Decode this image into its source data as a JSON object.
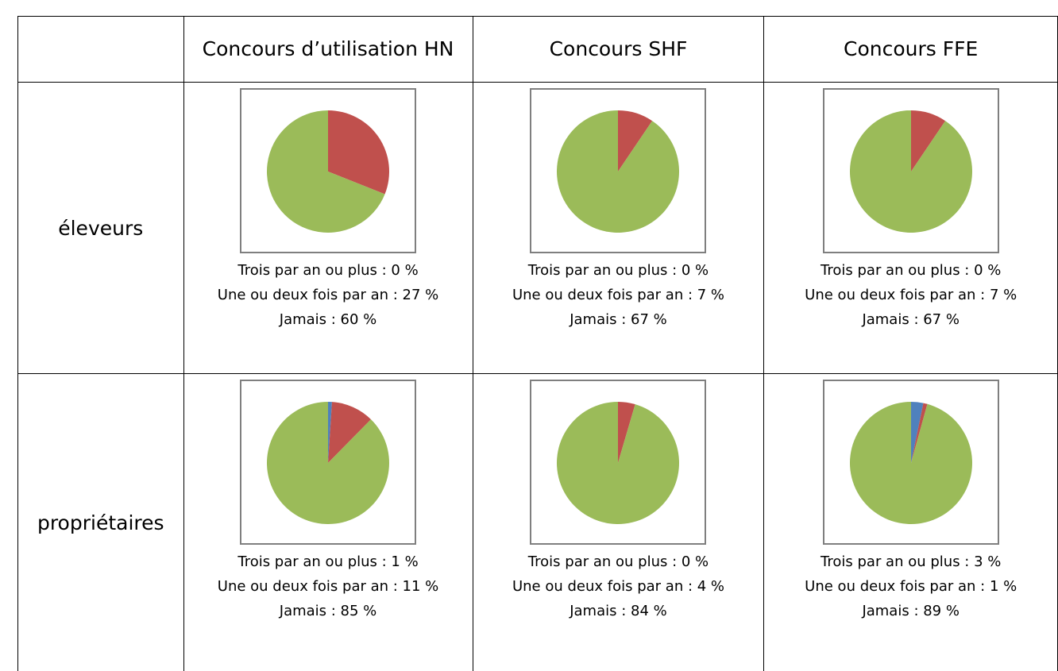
{
  "table": {
    "colors": [
      "#4f81bd",
      "#c0504d",
      "#9bbb59"
    ],
    "header": [
      "Concours d’utilisation HN",
      "Concours SHF",
      "Concours FFE"
    ],
    "rows": [
      {
        "label": "éleveurs",
        "cells": [
          {
            "type": "pie",
            "values": [
              0,
              27,
              60
            ],
            "value_labels": [
              "Trois par an ou plus : 0 %",
              "Une ou deux fois par an : 27 %",
              "Jamais : 60 %"
            ]
          },
          {
            "type": "pie",
            "values": [
              0,
              7,
              67
            ],
            "value_labels": [
              "Trois par an ou plus : 0 %",
              "Une ou deux fois par an : 7 %",
              "Jamais : 67 %"
            ]
          },
          {
            "type": "pie",
            "values": [
              0,
              7,
              67
            ],
            "value_labels": [
              "Trois par an ou plus : 0 %",
              "Une ou deux fois par an : 7 %",
              "Jamais : 67 %"
            ]
          }
        ]
      },
      {
        "label": "propriétaires",
        "cells": [
          {
            "type": "pie",
            "values": [
              1,
              11,
              85
            ],
            "value_labels": [
              "Trois par an ou plus : 1 %",
              "Une ou deux fois par an : 11 %",
              "Jamais : 85 %"
            ]
          },
          {
            "type": "pie",
            "values": [
              0,
              4,
              84
            ],
            "value_labels": [
              "Trois par an ou plus : 0 %",
              "Une ou deux fois par an : 4 %",
              "Jamais : 84 %"
            ]
          },
          {
            "type": "pie",
            "values": [
              3,
              1,
              89
            ],
            "value_labels": [
              "Trois par an ou plus : 3 %",
              "Une ou deux fois par an : 1 %",
              "Jamais : 89 %"
            ]
          }
        ]
      }
    ]
  }
}
